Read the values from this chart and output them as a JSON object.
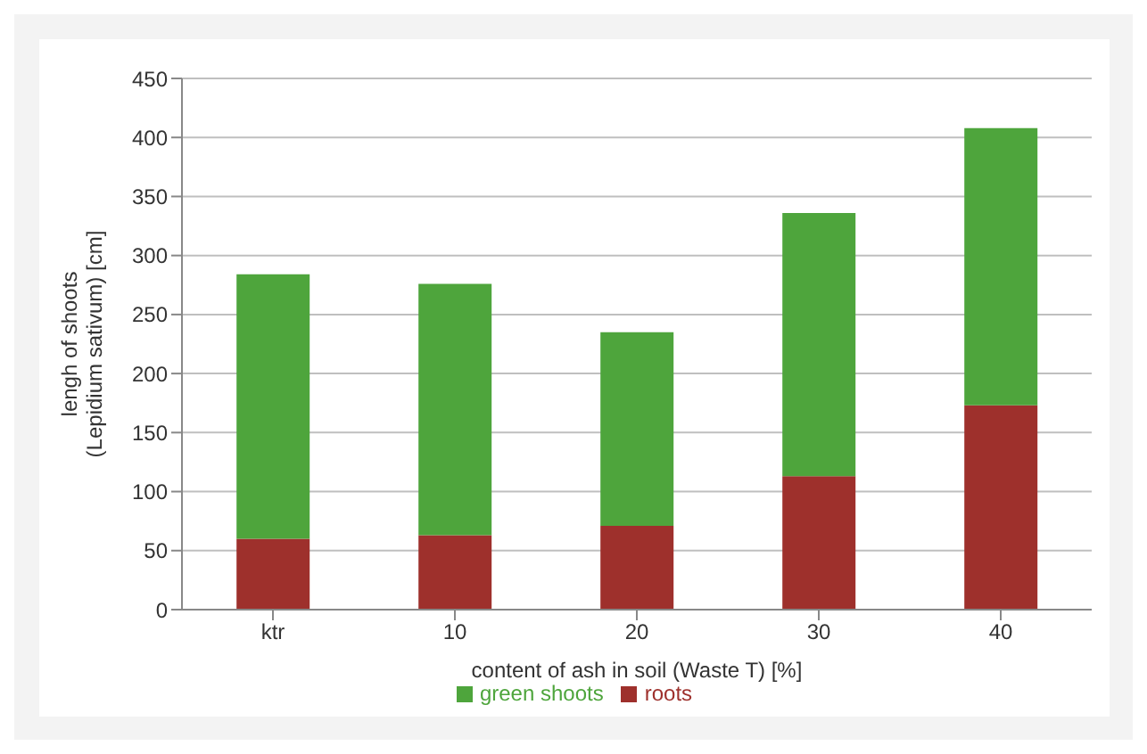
{
  "chart_data": {
    "type": "bar",
    "stacked": true,
    "xlabel": "content of ash in soil (Waste T) [%]",
    "ylabel": "lengh of shoots\n(Lepidium sativum) [cm]",
    "categories": [
      "ktr",
      "10",
      "20",
      "30",
      "40"
    ],
    "series": [
      {
        "name": "roots",
        "color": "#9e302c",
        "values": [
          60,
          63,
          71,
          113,
          173
        ]
      },
      {
        "name": "green shoots",
        "color": "#4ea53c",
        "values": [
          224,
          213,
          164,
          223,
          235
        ]
      }
    ],
    "ylim": [
      0,
      450
    ],
    "yticks": [
      0,
      50,
      100,
      150,
      200,
      250,
      300,
      350,
      400,
      450
    ],
    "grid": "y",
    "legend": "bottom"
  }
}
